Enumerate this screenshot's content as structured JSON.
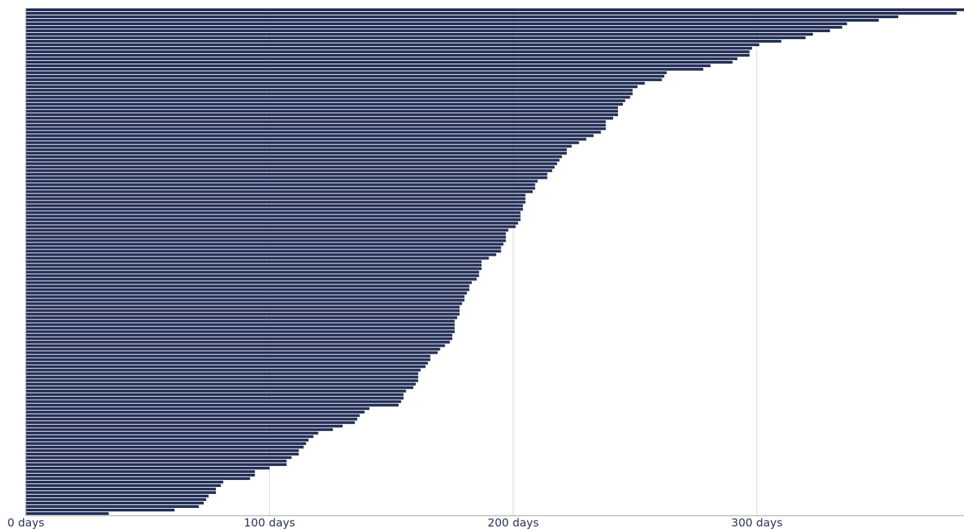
{
  "chart_data": {
    "type": "hbar",
    "color": "#243058",
    "values": [
      385,
      382,
      358,
      350,
      337,
      335,
      330,
      323,
      320,
      310,
      301,
      298,
      297,
      297,
      292,
      290,
      281,
      278,
      263,
      262,
      261,
      254,
      251,
      249,
      249,
      248,
      246,
      245,
      243,
      243,
      243,
      241,
      238,
      238,
      238,
      236,
      233,
      230,
      227,
      224,
      222,
      222,
      220,
      219,
      218,
      217,
      216,
      214,
      214,
      210,
      209,
      209,
      208,
      205,
      205,
      205,
      204,
      204,
      203,
      203,
      203,
      202,
      201,
      198,
      197,
      197,
      197,
      196,
      195,
      195,
      193,
      190,
      187,
      187,
      187,
      186,
      186,
      185,
      183,
      182,
      182,
      181,
      180,
      180,
      179,
      178,
      178,
      178,
      177,
      176,
      176,
      176,
      176,
      175,
      175,
      174,
      172,
      170,
      169,
      166,
      166,
      165,
      164,
      162,
      161,
      161,
      161,
      160,
      159,
      156,
      155,
      155,
      154,
      153,
      141,
      139,
      137,
      136,
      135,
      130,
      126,
      120,
      118,
      116,
      115,
      114,
      112,
      112,
      109,
      107,
      107,
      100,
      94,
      94,
      92,
      81,
      80,
      78,
      78,
      75,
      74,
      73,
      71,
      61,
      34
    ],
    "xlim": [
      0,
      385
    ],
    "xticks": [
      {
        "value": 0,
        "label": "0 days"
      },
      {
        "value": 100,
        "label": "100 days"
      },
      {
        "value": 200,
        "label": "200 days"
      },
      {
        "value": 300,
        "label": "300 days"
      }
    ],
    "grid": true
  }
}
